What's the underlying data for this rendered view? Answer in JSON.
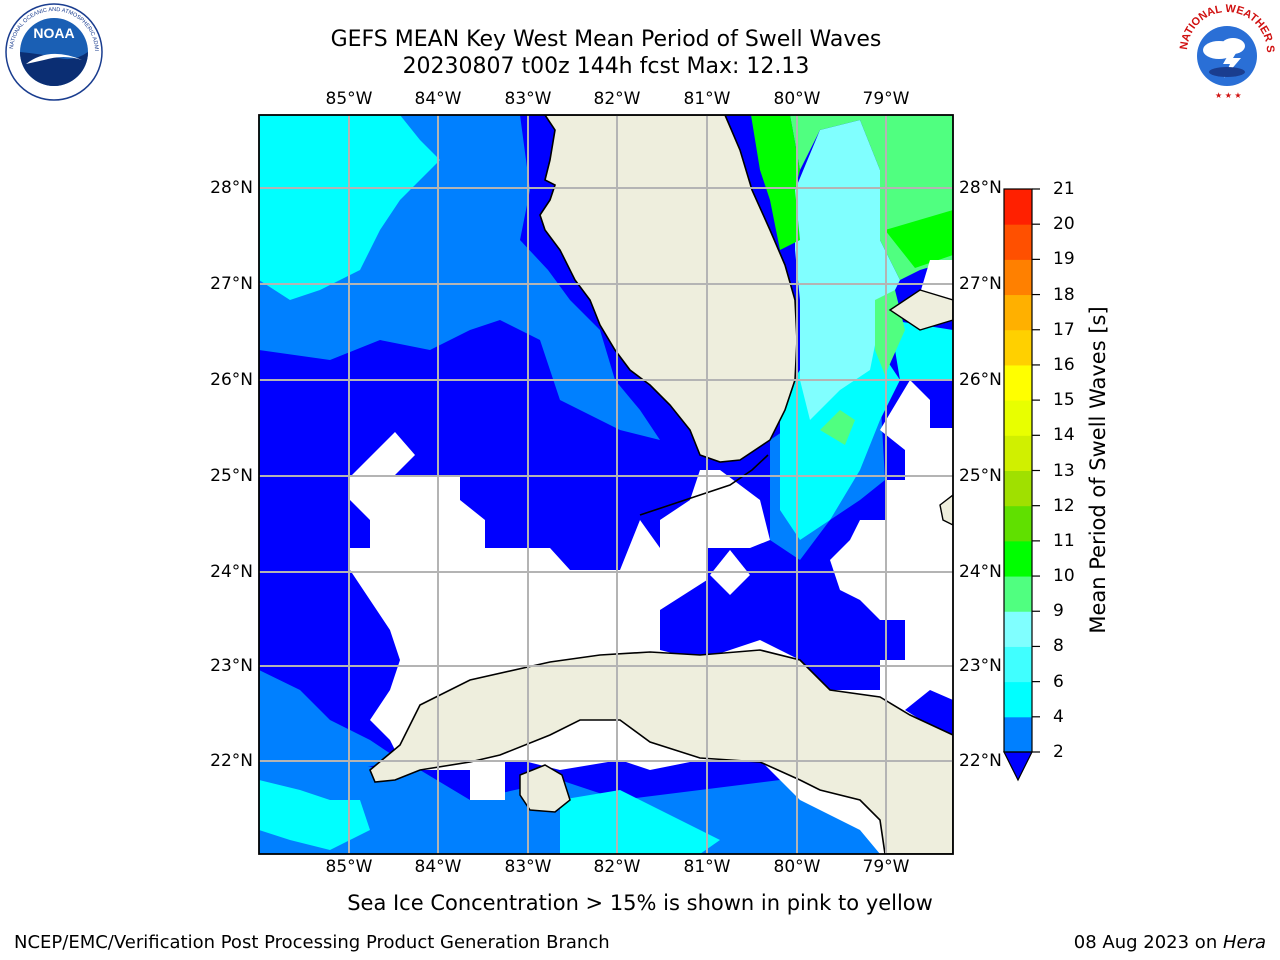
{
  "header": {
    "title_line1": "GEFS MEAN Key West Mean Period of Swell Waves",
    "title_line2": "20230807 t00z 144h fcst   Max: 12.13",
    "left_logo": "noaa-logo",
    "left_logo_text": "NATIONAL OCEANIC AND ATMOSPHERIC ADMINISTRATION · U.S. DEPARTMENT OF COMMERCE",
    "right_logo": "national-weather-service-logo",
    "right_logo_text": "NATIONAL WEATHER SERVICE"
  },
  "map": {
    "projection": "plate-carree",
    "extent": {
      "lon": [
        -86,
        -78.3
      ],
      "lat": [
        21.05,
        28.8
      ]
    },
    "lon_ticks": [
      "85°W",
      "84°W",
      "83°W",
      "82°W",
      "81°W",
      "80°W",
      "79°W"
    ],
    "lat_ticks": [
      "28°N",
      "27°N",
      "26°N",
      "25°N",
      "24°N",
      "23°N",
      "22°N"
    ],
    "land_color": "#eeeedd",
    "coastline_color": "#000000",
    "gridlines": true,
    "field": "mean period of swell waves"
  },
  "colorbar": {
    "label": "Mean Period of Swell Waves [s]",
    "levels": [
      2,
      4,
      6,
      8,
      9,
      10,
      11,
      12,
      13,
      14,
      15,
      16,
      17,
      18,
      19,
      20,
      21
    ],
    "tick_labels": [
      "2",
      "4",
      "6",
      "8",
      "9",
      "10",
      "11",
      "12",
      "13",
      "14",
      "15",
      "16",
      "17",
      "18",
      "19",
      "20",
      "21"
    ],
    "colors": [
      "#0000ff",
      "#0080ff",
      "#00ffff",
      "#40ffff",
      "#80ffff",
      "#50ff80",
      "#00ff00",
      "#60e000",
      "#a0e000",
      "#d0f000",
      "#e8ff00",
      "#ffff00",
      "#ffd000",
      "#ffb000",
      "#ff8000",
      "#ff5000",
      "#ff2000",
      "#ff0000"
    ],
    "extend": "min"
  },
  "footer": {
    "note": "Sea Ice Concentration > 15% is shown in pink to yellow",
    "credit_left": "NCEP/EMC/Verification Post Processing Product Generation Branch",
    "credit_right_date": "08 Aug 2023 on ",
    "credit_right_host": "Hera"
  }
}
